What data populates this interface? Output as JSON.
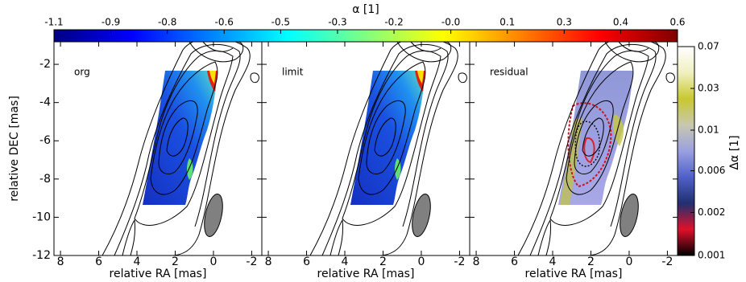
{
  "chart_data": {
    "type": "image",
    "panels": [
      {
        "label": "org",
        "xlabel": "relative RA [mas]"
      },
      {
        "label": "limit",
        "xlabel": "relative RA [mas]"
      },
      {
        "label": "residual",
        "xlabel": "relative RA [mas]"
      }
    ],
    "ylabel": "relative DEC [mas]",
    "xlim": [
      8.34,
      -2.53
    ],
    "xticks": [
      8,
      6,
      4,
      2,
      0,
      -2
    ],
    "ylim": [
      -12,
      -0.82
    ],
    "yticks": [
      -2,
      -4,
      -6,
      -8,
      -10,
      -12
    ],
    "colorbar": {
      "title": "α [1]",
      "lim": [
        -1.1,
        0.6
      ],
      "scale": "linear",
      "colors": [
        "#00007f",
        "#0000ff",
        "#0080ff",
        "#00ffff",
        "#80ff80",
        "#ffff00",
        "#ff8000",
        "#ff0000",
        "#7f0000"
      ],
      "ticks": [
        {
          "value": -1.1,
          "label": "-1.1"
        },
        {
          "value": -0.945,
          "label": "-0.9"
        },
        {
          "value": -0.791,
          "label": "-0.8"
        },
        {
          "value": -0.636,
          "label": "-0.6"
        },
        {
          "value": -0.482,
          "label": "-0.5"
        },
        {
          "value": -0.327,
          "label": "-0.3"
        },
        {
          "value": -0.173,
          "label": "-0.2"
        },
        {
          "value": -0.018,
          "label": "-0.0"
        },
        {
          "value": 0.136,
          "label": "0.1"
        },
        {
          "value": 0.291,
          "label": "0.3"
        },
        {
          "value": 0.445,
          "label": "0.4"
        },
        {
          "value": 0.6,
          "label": "0.6"
        }
      ]
    },
    "colorbar2": {
      "title": "Δα [1]",
      "lim": [
        0.001,
        0.07
      ],
      "scale": "log",
      "colors": [
        "#000000",
        "#e0102a",
        "#203070",
        "#5060c8",
        "#9aa0e0",
        "#c8c8b0",
        "#c8c830",
        "#f0f0c0",
        "#ffffff"
      ],
      "ticks": [
        {
          "value": 0.001,
          "label": "0.001"
        },
        {
          "value": 0.0024,
          "label": "0.002"
        },
        {
          "value": 0.0056,
          "label": "0.006"
        },
        {
          "value": 0.0128,
          "label": "0.01"
        },
        {
          "value": 0.0299,
          "label": "0.03"
        },
        {
          "value": 0.07,
          "label": "0.07"
        }
      ]
    }
  }
}
